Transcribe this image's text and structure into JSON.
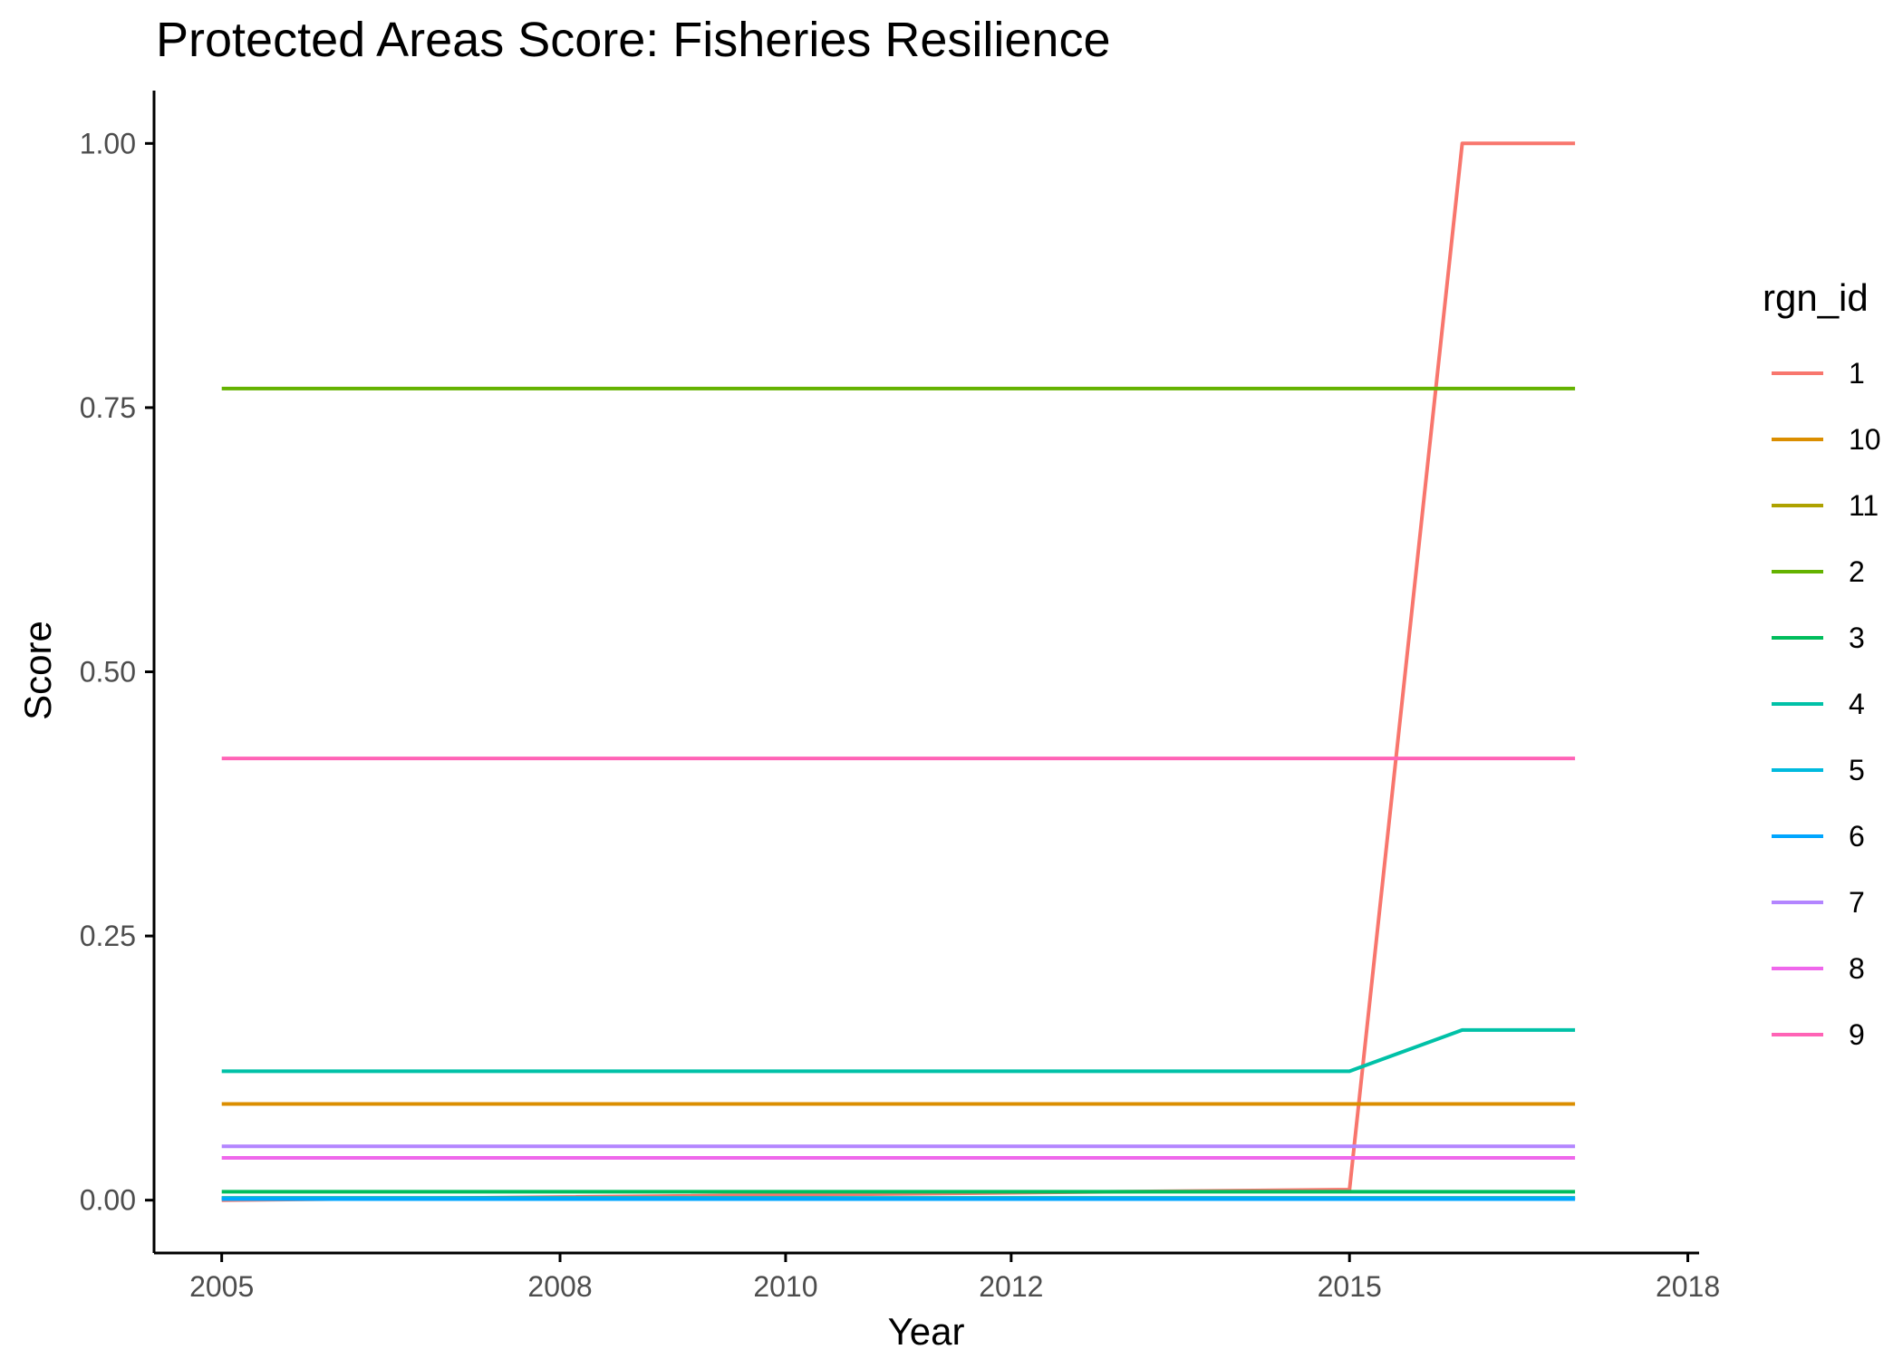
{
  "chart_data": {
    "type": "line",
    "title": "Protected Areas Score: Fisheries Resilience",
    "xlabel": "Year",
    "ylabel": "Score",
    "xlim": [
      2004.4,
      2018.1
    ],
    "ylim": [
      -0.05,
      1.05
    ],
    "x_ticks": [
      2005,
      2008,
      2010,
      2012,
      2015,
      2018
    ],
    "x_tick_labels": [
      "2005",
      "2008",
      "2010",
      "2012",
      "2015",
      "2018"
    ],
    "y_ticks": [
      0,
      0.25,
      0.5,
      0.75,
      1.0
    ],
    "y_tick_labels": [
      "0.00",
      "0.25",
      "0.50",
      "0.75",
      "1.00"
    ],
    "grid": false,
    "legend": {
      "title": "rgn_id",
      "position": "right"
    },
    "series": [
      {
        "name": "1",
        "color": "#F8766D",
        "x": [
          2005,
          2015,
          2016,
          2017
        ],
        "y": [
          0.0,
          0.01,
          1.0,
          1.0
        ]
      },
      {
        "name": "10",
        "color": "#DB8E00",
        "x": [
          2005,
          2017
        ],
        "y": [
          0.091,
          0.091
        ]
      },
      {
        "name": "11",
        "color": "#AEA200",
        "x": [
          2005,
          2017
        ],
        "y": [
          0.002,
          0.002
        ]
      },
      {
        "name": "2",
        "color": "#64B200",
        "x": [
          2005,
          2017
        ],
        "y": [
          0.768,
          0.768
        ]
      },
      {
        "name": "3",
        "color": "#00BD5C",
        "x": [
          2005,
          2017
        ],
        "y": [
          0.008,
          0.008
        ]
      },
      {
        "name": "4",
        "color": "#00C1A7",
        "x": [
          2005,
          2015,
          2016,
          2017
        ],
        "y": [
          0.122,
          0.122,
          0.161,
          0.161
        ]
      },
      {
        "name": "5",
        "color": "#00BADE",
        "x": [
          2005,
          2017
        ],
        "y": [
          0.002,
          0.002
        ]
      },
      {
        "name": "6",
        "color": "#00A6FF",
        "x": [
          2005,
          2017
        ],
        "y": [
          0.001,
          0.001
        ]
      },
      {
        "name": "7",
        "color": "#B385FF",
        "x": [
          2005,
          2017
        ],
        "y": [
          0.051,
          0.051
        ]
      },
      {
        "name": "8",
        "color": "#EF67EB",
        "x": [
          2005,
          2017
        ],
        "y": [
          0.04,
          0.04
        ]
      },
      {
        "name": "9",
        "color": "#FF63B6",
        "x": [
          2005,
          2017
        ],
        "y": [
          0.418,
          0.418
        ]
      }
    ]
  }
}
